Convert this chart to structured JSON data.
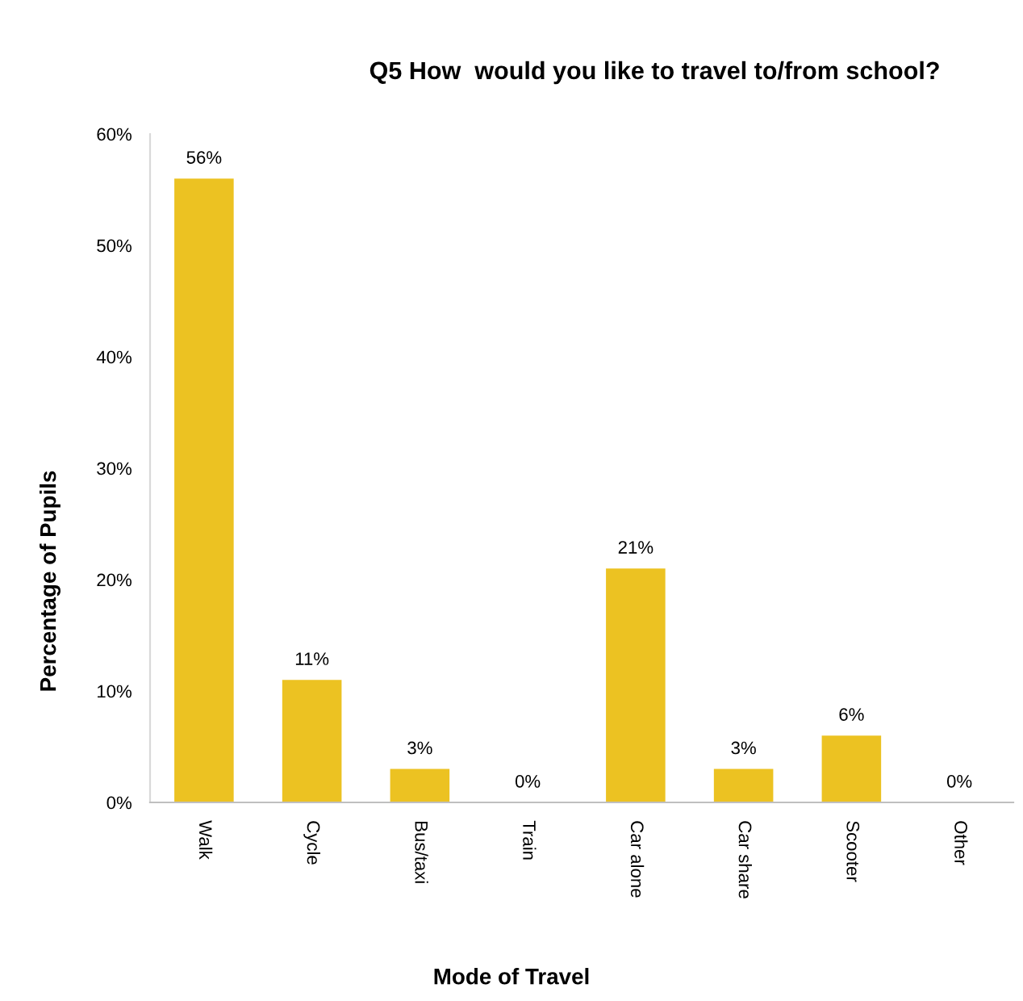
{
  "chart_data": {
    "type": "bar",
    "title": "Q5 How  would you like to travel to/from school?",
    "xlabel": "Mode of Travel",
    "ylabel": "Percentage of Pupils",
    "categories": [
      "Walk",
      "Cycle",
      "Bus/taxi",
      "Train",
      "Car alone",
      "Car share",
      "Scooter",
      "Other"
    ],
    "values": [
      56,
      11,
      3,
      0,
      21,
      3,
      6,
      0
    ],
    "value_labels": [
      "56%",
      "11%",
      "3%",
      "0%",
      "21%",
      "3%",
      "6%",
      "0%"
    ],
    "color": "#ecc222",
    "ylim": [
      0,
      60
    ],
    "yticks": [
      {
        "value": 0,
        "label": "0%"
      },
      {
        "value": 10,
        "label": "10%"
      },
      {
        "value": 20,
        "label": "20%"
      },
      {
        "value": 30,
        "label": "30%"
      },
      {
        "value": 40,
        "label": "40%"
      },
      {
        "value": 50,
        "label": "50%"
      },
      {
        "value": 60,
        "label": "60%"
      }
    ],
    "grid": false,
    "legend": false
  }
}
